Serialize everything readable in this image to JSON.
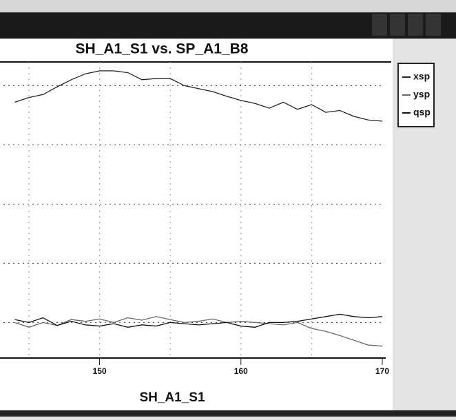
{
  "chart_data": {
    "type": "line",
    "title": "SH_A1_S1 vs. SP_A1_B8",
    "x_label": "SH_A1_S1",
    "x": [
      144,
      145,
      146,
      147,
      148,
      149,
      150,
      151,
      152,
      153,
      154,
      155,
      156,
      157,
      158,
      159,
      160,
      161,
      162,
      163,
      164,
      165,
      166,
      167,
      168,
      169,
      170
    ],
    "series": [
      {
        "name": "xsp",
        "color": "#222222",
        "values": [
          4.72,
          4.8,
          4.85,
          4.98,
          5.1,
          5.2,
          5.25,
          5.25,
          5.22,
          5.1,
          5.12,
          5.12,
          5.0,
          4.95,
          4.9,
          4.82,
          4.75,
          4.7,
          4.62,
          4.72,
          4.6,
          4.68,
          4.55,
          4.58,
          4.48,
          4.42,
          4.4
        ]
      },
      {
        "name": "ysp",
        "color": "#666666",
        "values": [
          1.0,
          0.92,
          1.0,
          0.95,
          1.05,
          1.02,
          1.06,
          1.0,
          1.08,
          1.04,
          1.1,
          1.05,
          1.0,
          1.02,
          1.06,
          1.0,
          1.02,
          1.0,
          0.98,
          0.96,
          1.0,
          0.9,
          0.85,
          0.78,
          0.7,
          0.62,
          0.6
        ]
      },
      {
        "name": "qsp",
        "color": "#111111",
        "values": [
          1.05,
          1.0,
          1.08,
          0.95,
          1.02,
          0.96,
          0.94,
          0.98,
          0.92,
          0.96,
          0.94,
          1.0,
          0.98,
          0.96,
          0.98,
          1.0,
          0.94,
          0.92,
          1.0,
          1.0,
          1.02,
          1.06,
          1.1,
          1.14,
          1.1,
          1.08,
          1.1
        ]
      }
    ],
    "xlim": [
      143.2,
      170
    ],
    "xticks": [
      150,
      160,
      170
    ],
    "xgrid": [
      145,
      150,
      155,
      160,
      165
    ],
    "ylim": [
      0.4,
      5.4
    ],
    "yticks": [
      1,
      2,
      3,
      4,
      5
    ],
    "grid": true
  }
}
